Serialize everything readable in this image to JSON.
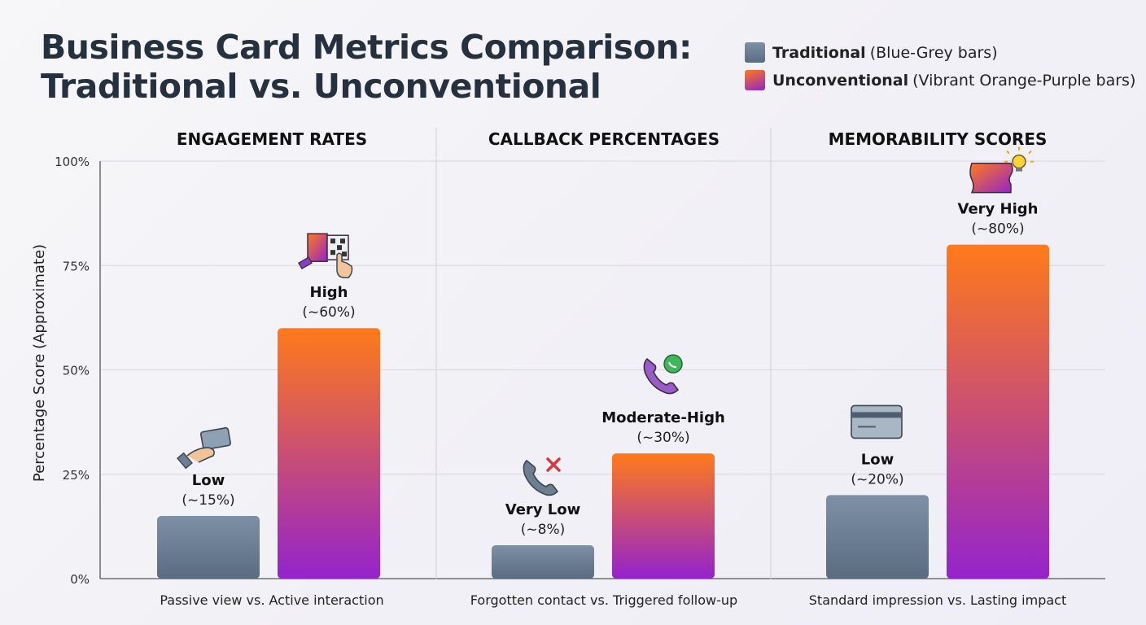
{
  "title_line1": "Business Card Metrics Comparison:",
  "title_line2": "Traditional vs. Unconventional",
  "legend": [
    {
      "label": "Traditional",
      "desc": "(Blue-Grey bars)",
      "color": "#667a8f"
    },
    {
      "label": "Unconventional",
      "desc": "(Vibrant Orange-Purple bars)",
      "color_top": "#ff7a1a",
      "color_bottom": "#9423cc"
    }
  ],
  "chart_data": {
    "type": "bar",
    "ylabel": "Percentage Score (Approximate)",
    "ylim": [
      0,
      100
    ],
    "yticks": [
      0,
      25,
      50,
      75,
      100
    ],
    "ytick_labels": [
      "0%",
      "25%",
      "50%",
      "75%",
      "100%"
    ],
    "grid": true,
    "legend_position": "top-right",
    "series": [
      {
        "name": "Traditional",
        "color": "#667a8f"
      },
      {
        "name": "Unconventional",
        "color_top": "#ff7a1a",
        "color_bottom": "#9423cc"
      }
    ],
    "panels": [
      {
        "title": "ENGAGEMENT RATES",
        "caption": "Passive view vs. Active interaction",
        "bars": [
          {
            "series": "Traditional",
            "value": 15,
            "label": "Low",
            "sublabel": "(~15%)",
            "icon": "hand-card-icon"
          },
          {
            "series": "Unconventional",
            "value": 60,
            "label": "High",
            "sublabel": "(~60%)",
            "icon": "qr-card-tap-icon"
          }
        ]
      },
      {
        "title": "CALLBACK PERCENTAGES",
        "caption": "Forgotten contact vs. Triggered follow-up",
        "bars": [
          {
            "series": "Traditional",
            "value": 8,
            "label": "Very Low",
            "sublabel": "(~8%)",
            "icon": "phone-missed-icon"
          },
          {
            "series": "Unconventional",
            "value": 30,
            "label": "Moderate-High",
            "sublabel": "(~30%)",
            "icon": "phone-chat-icon"
          }
        ]
      },
      {
        "title": "MEMORABILITY SCORES",
        "caption": "Standard impression vs. Lasting impact",
        "bars": [
          {
            "series": "Traditional",
            "value": 20,
            "label": "Low",
            "sublabel": "(~20%)",
            "icon": "plain-card-icon"
          },
          {
            "series": "Unconventional",
            "value": 80,
            "label": "Very High",
            "sublabel": "(~80%)",
            "icon": "idea-card-icon"
          }
        ]
      }
    ]
  }
}
